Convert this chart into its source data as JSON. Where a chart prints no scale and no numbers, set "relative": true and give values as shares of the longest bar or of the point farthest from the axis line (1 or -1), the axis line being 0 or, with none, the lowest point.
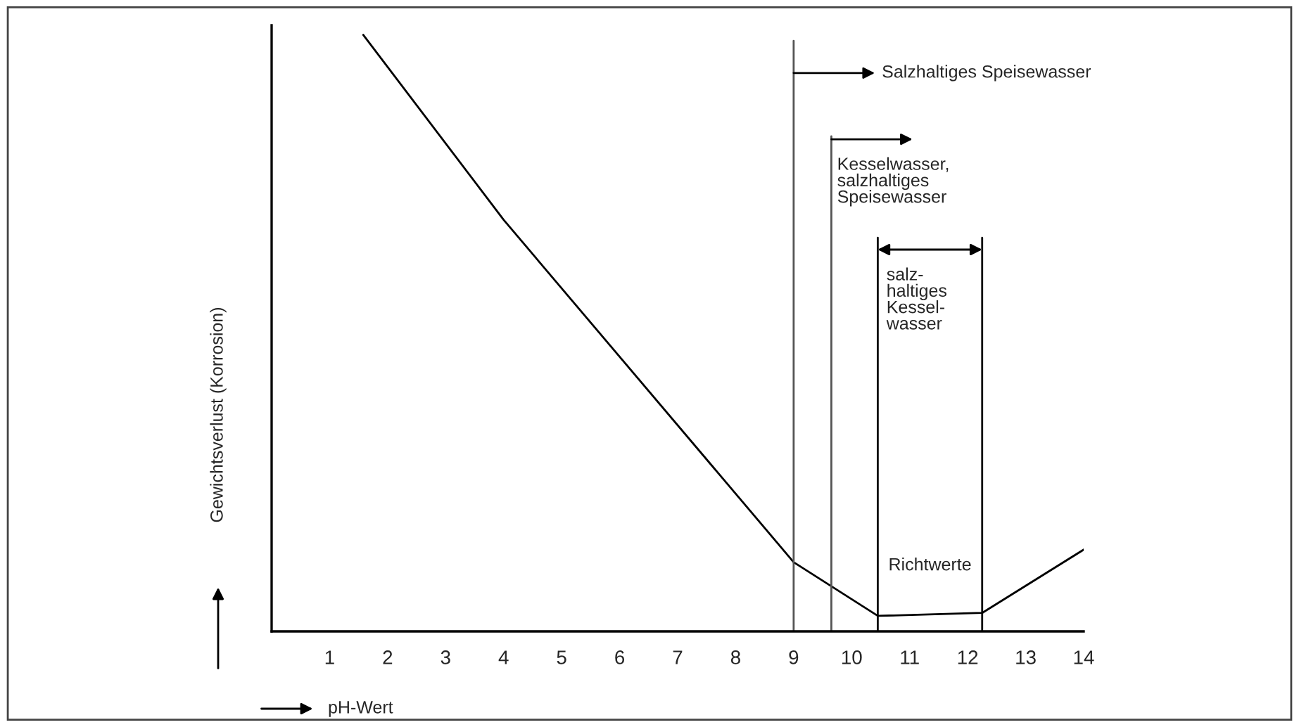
{
  "chart_data": {
    "type": "line",
    "relative": true,
    "xlabel": "pH-Wert",
    "ylabel": "Gewichtsverlust (Korrosion)",
    "xlim": [
      0,
      14
    ],
    "xticks": [
      1,
      2,
      3,
      4,
      5,
      6,
      7,
      8,
      9,
      10,
      11,
      12,
      13,
      14
    ],
    "series": [
      {
        "color": "#000000",
        "x": [
          1.58,
          4,
          9,
          10.45,
          12.25,
          14
        ],
        "values": [
          1,
          0.69,
          0.116,
          0.026,
          0.031,
          0.137
        ]
      }
    ],
    "ref_lines": [
      {
        "axis": "x",
        "value": 9,
        "label": "Salzhaltiges Speisewasser",
        "color": "#555555"
      },
      {
        "axis": "x",
        "value": 9.65,
        "label": "Kesselwasser,\nsalzhaltiges\nSpeisewasser",
        "color": "#555555"
      },
      {
        "axis": "x",
        "value": 10.45,
        "label": "salz-\nhaltiges\nKessel-\nwasser",
        "color": "#000000"
      },
      {
        "axis": "x",
        "value": 12.25,
        "color": "#000000"
      }
    ],
    "annotations": [
      "Richtwerte"
    ],
    "grid": false,
    "legend": false,
    "marker": "none",
    "line_style": "solid"
  }
}
